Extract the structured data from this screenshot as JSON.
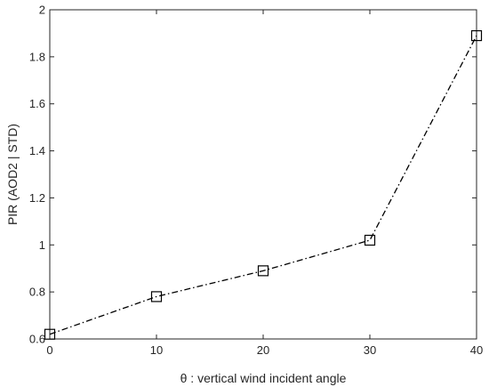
{
  "chart_data": {
    "type": "line",
    "title": "",
    "xlabel": "θ  : vertical wind incident angle",
    "ylabel": "PIR (AOD2 | STD)",
    "xlim": [
      0,
      40
    ],
    "ylim": [
      0.6,
      2
    ],
    "xticks": [
      0,
      10,
      20,
      30,
      40
    ],
    "xtick_labels": [
      "0",
      "10",
      "20",
      "30",
      "40"
    ],
    "yticks": [
      0.6,
      0.8,
      1,
      1.2,
      1.4,
      1.6,
      1.8,
      2
    ],
    "ytick_labels": [
      "0.6",
      "0.8",
      "1",
      "1.2",
      "1.4",
      "1.6",
      "1.8",
      "2"
    ],
    "grid": false,
    "line_style": "dash-dot",
    "marker": "square",
    "line_color": "#000000",
    "series": [
      {
        "x": [
          0,
          10,
          20,
          30,
          40
        ],
        "y": [
          0.62,
          0.78,
          0.89,
          1.02,
          1.89
        ]
      }
    ]
  }
}
